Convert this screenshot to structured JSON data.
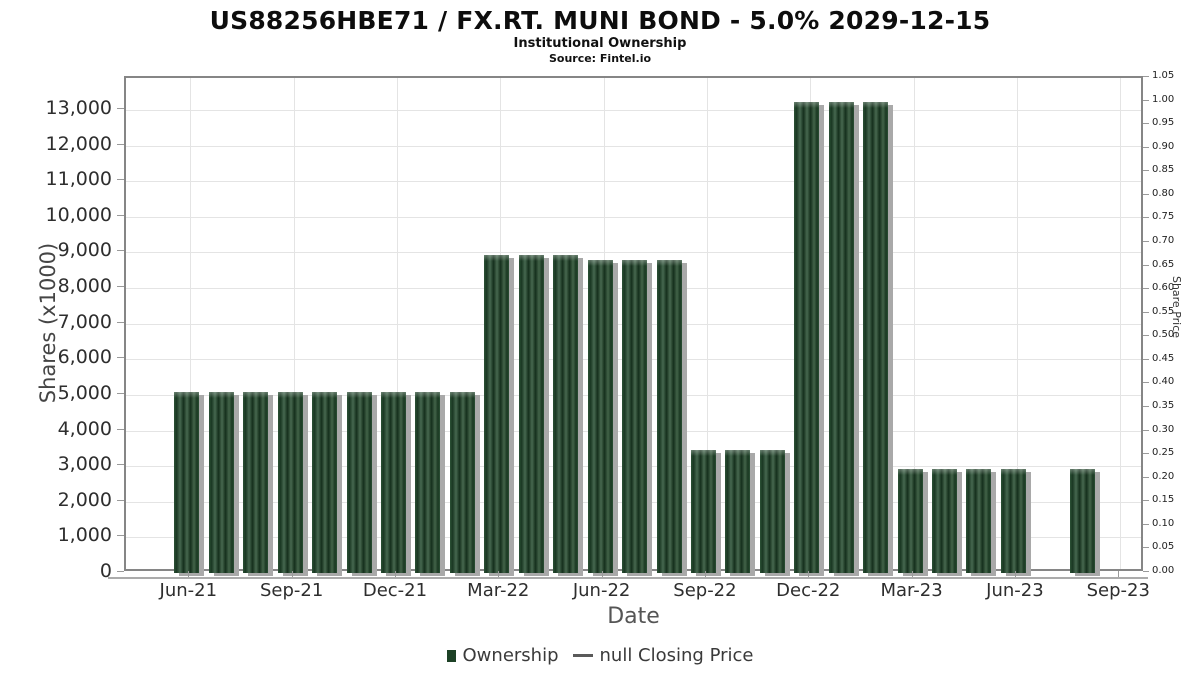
{
  "header": {
    "title": "US88256HBE71 / FX.RT. MUNI BOND - 5.0% 2029-12-15",
    "subtitle": "Institutional Ownership",
    "source": "Source: Fintel.io"
  },
  "chart_data": {
    "type": "bar",
    "title": "US88256HBE71 / FX.RT. MUNI BOND - 5.0% 2029-12-15",
    "subtitle": "Institutional Ownership",
    "source": "Source: Fintel.io",
    "xlabel": "Date",
    "ylabel_left": "Shares (x1000)",
    "ylabel_right": "Share Price",
    "grid": true,
    "legend_position": "bottom",
    "ylim_left": [
      0,
      13900
    ],
    "ylim_right": [
      0,
      1.05
    ],
    "x_quarter_tick_labels": [
      "Jun-21",
      "Sep-21",
      "Dec-21",
      "Mar-22",
      "Jun-22",
      "Sep-22",
      "Dec-22",
      "Mar-23",
      "Jun-23",
      "Sep-23"
    ],
    "x_quarter_tick_month_offsets": [
      0,
      3,
      6,
      9,
      12,
      15,
      18,
      21,
      24,
      27
    ],
    "y_left_tick_values": [
      0,
      1000,
      2000,
      3000,
      4000,
      5000,
      6000,
      7000,
      8000,
      9000,
      10000,
      11000,
      12000,
      13000
    ],
    "y_left_tick_labels": [
      "0",
      "1,000",
      "2,000",
      "3,000",
      "4,000",
      "5,000",
      "6,000",
      "7,000",
      "8,000",
      "9,000",
      "10,000",
      "11,000",
      "12,000",
      "13,000"
    ],
    "y_right_tick_labels": [
      "0.00",
      "0.05",
      "0.10",
      "0.15",
      "0.20",
      "0.25",
      "0.30",
      "0.35",
      "0.40",
      "0.45",
      "0.50",
      "0.55",
      "0.60",
      "0.65",
      "0.70",
      "0.75",
      "0.80",
      "0.85",
      "0.90",
      "0.95",
      "1.00",
      "1.05"
    ],
    "x": [
      "Jun-21",
      "Jul-21",
      "Aug-21",
      "Sep-21",
      "Oct-21",
      "Nov-21",
      "Dec-21",
      "Jan-22",
      "Feb-22",
      "Mar-22",
      "Apr-22",
      "May-22",
      "Jun-22",
      "Jul-22",
      "Aug-22",
      "Sep-22",
      "Oct-22",
      "Nov-22",
      "Dec-22",
      "Jan-23",
      "Feb-23",
      "Mar-23",
      "Apr-23",
      "May-23",
      "Jun-23",
      "Jul-23",
      "Aug-23"
    ],
    "series": [
      {
        "name": "Ownership",
        "type": "bar",
        "color": "#1d4126",
        "values": [
          5090,
          5090,
          5090,
          5090,
          5090,
          5090,
          5090,
          5090,
          5090,
          8930,
          8930,
          8930,
          8780,
          8780,
          8780,
          3460,
          3460,
          3460,
          13230,
          13230,
          13230,
          2930,
          2930,
          2930,
          2930,
          null,
          2930
        ]
      },
      {
        "name": "null Closing Price",
        "type": "line",
        "color": "#5a5a5a",
        "values": null
      }
    ]
  },
  "legend": {
    "items": [
      {
        "label": "Ownership",
        "marker": "square",
        "color": "#1d4126"
      },
      {
        "label": "null Closing Price",
        "marker": "dash",
        "color": "#5a5a5a"
      }
    ]
  },
  "colors": {
    "bar_dark": "#16331e",
    "bar_light": "#47684f",
    "bar_shadow": "#a9a9a9",
    "grid": "#e4e4e4",
    "frame": "#868686",
    "tick": "#9a9a9a"
  }
}
